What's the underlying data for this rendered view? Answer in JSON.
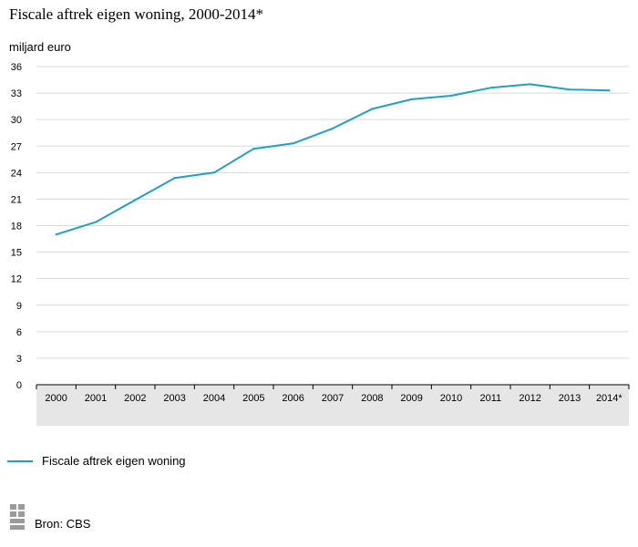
{
  "chart_data": {
    "type": "line",
    "title": "Fiscale aftrek eigen woning, 2000-2014*",
    "ylabel": "miljard euro",
    "xlabel": "",
    "categories": [
      "2000",
      "2001",
      "2002",
      "2003",
      "2004",
      "2005",
      "2006",
      "2007",
      "2008",
      "2009",
      "2010",
      "2011",
      "2012",
      "2013",
      "2014*"
    ],
    "series": [
      {
        "name": "Fiscale aftrek eigen woning",
        "values": [
          17.0,
          18.4,
          20.9,
          23.4,
          24.0,
          26.7,
          27.3,
          29.0,
          31.2,
          32.3,
          32.7,
          33.6,
          34.0,
          33.4,
          33.3
        ]
      }
    ],
    "yticks": [
      0,
      3,
      6,
      9,
      12,
      15,
      18,
      21,
      24,
      27,
      30,
      33,
      36
    ],
    "ylim": [
      0,
      36
    ],
    "grid": true,
    "legend_position": "bottom-left"
  },
  "colors": {
    "line": "#1ea1c9",
    "grid": "#d9d9d9",
    "axis_band": "#e6e6e6"
  },
  "source": {
    "label": "Bron: CBS",
    "logo_icon": "cbs-logo-icon"
  }
}
